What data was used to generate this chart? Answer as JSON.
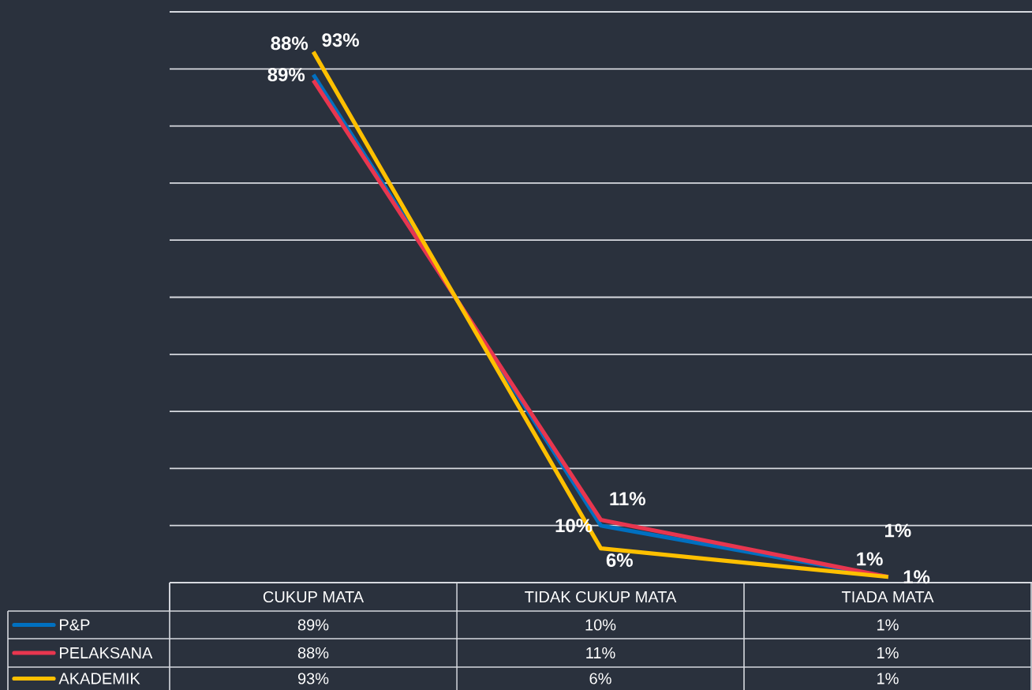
{
  "chart_data": {
    "type": "line",
    "categories": [
      "CUKUP MATA",
      "TIDAK CUKUP MATA",
      "TIADA MATA"
    ],
    "series": [
      {
        "name": "P&P",
        "color": "#0070c0",
        "values": [
          89,
          10,
          1
        ],
        "value_labels": [
          "89%",
          "10%",
          "1%"
        ]
      },
      {
        "name": "PELAKSANA",
        "color": "#e8364f",
        "values": [
          88,
          11,
          1
        ],
        "value_labels": [
          "88%",
          "11%",
          "1%"
        ]
      },
      {
        "name": "AKADEMIK",
        "color": "#ffc000",
        "values": [
          93,
          6,
          1
        ],
        "value_labels": [
          "93%",
          "6%",
          "1%"
        ]
      }
    ],
    "ylim": [
      0,
      100
    ],
    "yticks": [
      {
        "value": 0,
        "label": null
      },
      {
        "value": 10,
        "label": null
      },
      {
        "value": 20,
        "label": null
      },
      {
        "value": 30,
        "label": null
      },
      {
        "value": 40,
        "label": null
      },
      {
        "value": 50,
        "label": null
      },
      {
        "value": 60,
        "label": null
      },
      {
        "value": 70,
        "label": null
      },
      {
        "value": 80,
        "label": null
      },
      {
        "value": 90,
        "label": null
      },
      {
        "value": 100,
        "label": null
      }
    ],
    "grid": "y",
    "legend": "bottom",
    "tick_labels": "x",
    "marker": "none",
    "line_style": "solid"
  }
}
